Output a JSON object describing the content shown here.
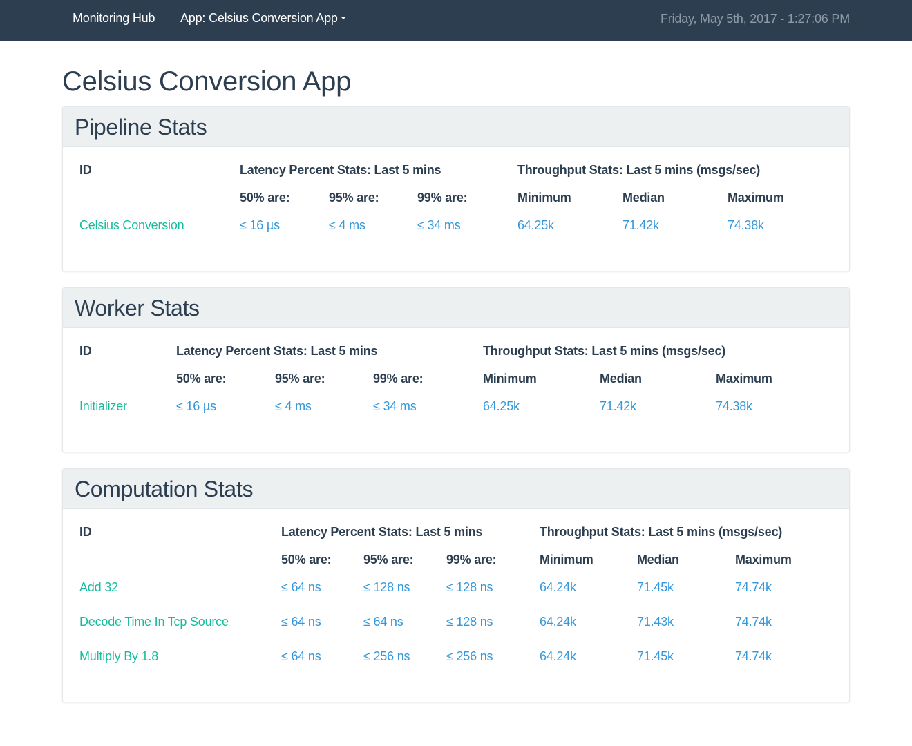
{
  "nav": {
    "brand": "Monitoring Hub",
    "app_label": "App: Celsius Conversion App",
    "timestamp": "Friday, May 5th, 2017 - 1:27:06 PM"
  },
  "page": {
    "title": "Celsius Conversion App"
  },
  "table_headers": {
    "id": "ID",
    "latency": "Latency Percent Stats: Last 5 mins",
    "throughput": "Throughput Stats: Last 5 mins (msgs/sec)",
    "p50": "50% are:",
    "p95": "95% are:",
    "p99": "99% are:",
    "min": "Minimum",
    "median": "Median",
    "max": "Maximum"
  },
  "panels": [
    {
      "title": "Pipeline Stats",
      "rows": [
        {
          "id": "Celsius Conversion",
          "p50": "≤ 16 µs",
          "p95": "≤ 4 ms",
          "p99": "≤ 34 ms",
          "min": "64.25k",
          "median": "71.42k",
          "max": "74.38k"
        }
      ]
    },
    {
      "title": "Worker Stats",
      "rows": [
        {
          "id": "Initializer",
          "p50": "≤ 16 µs",
          "p95": "≤ 4 ms",
          "p99": "≤ 34 ms",
          "min": "64.25k",
          "median": "71.42k",
          "max": "74.38k"
        }
      ]
    },
    {
      "title": "Computation Stats",
      "rows": [
        {
          "id": "Add 32",
          "p50": "≤ 64 ns",
          "p95": "≤ 128 ns",
          "p99": "≤ 128 ns",
          "min": "64.24k",
          "median": "71.45k",
          "max": "74.74k"
        },
        {
          "id": "Decode Time In Tcp Source",
          "p50": "≤ 64 ns",
          "p95": "≤ 64 ns",
          "p99": "≤ 128 ns",
          "min": "64.24k",
          "median": "71.43k",
          "max": "74.74k"
        },
        {
          "id": "Multiply By 1.8",
          "p50": "≤ 64 ns",
          "p95": "≤ 256 ns",
          "p99": "≤ 256 ns",
          "min": "64.24k",
          "median": "71.45k",
          "max": "74.74k"
        }
      ]
    }
  ],
  "colors": {
    "navbar": "#2c3e50",
    "id_link": "#18bc9c",
    "value_link": "#3498db",
    "panel_heading": "#ecf0f1"
  }
}
